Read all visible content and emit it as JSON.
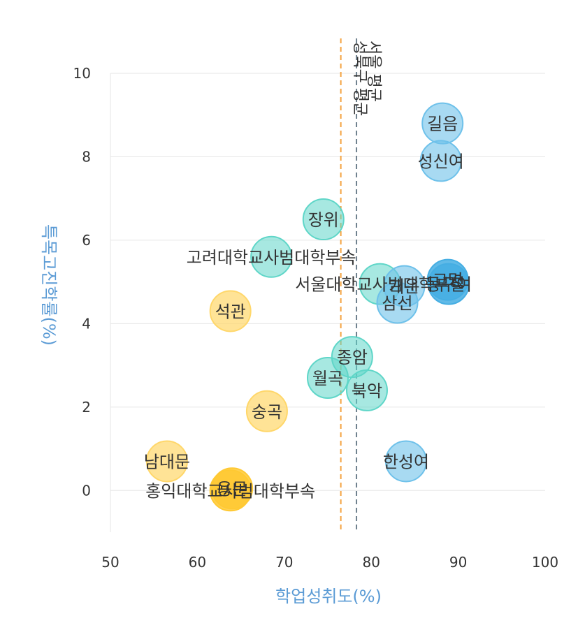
{
  "chart_data": {
    "type": "scatter",
    "xlabel": "학업성취도(%)",
    "ylabel": "특목고진학률(%)",
    "xlim": [
      50,
      100
    ],
    "ylim": [
      -1,
      10
    ],
    "xticks": [
      "50",
      "60",
      "70",
      "80",
      "90",
      "100"
    ],
    "yticks": [
      "0",
      "2",
      "4",
      "6",
      "8",
      "10"
    ],
    "grid": "horizontal",
    "colors": {
      "blue": "#6ec1ea",
      "teal": "#5fd6c8",
      "yellow": "#ffd76a",
      "yellow_dark": "#ffc933",
      "blue_dark": "#45aee3",
      "axis_title": "#5b9bd5",
      "ref_orange": "#f4a340",
      "ref_gray": "#6d7f8d"
    },
    "reference_lines": [
      {
        "x": 76.5,
        "color": "orange",
        "label": ""
      },
      {
        "x": 78.3,
        "color": "gray",
        "label": "서울 평균"
      },
      {
        "x": 78.3,
        "color": "gray",
        "label": "성북구 평균"
      }
    ],
    "points": [
      {
        "label": "길음",
        "x": 88.2,
        "y": 8.8,
        "color": "blue"
      },
      {
        "label": "성신여",
        "x": 88.0,
        "y": 7.9,
        "color": "blue"
      },
      {
        "label": "장위",
        "x": 74.5,
        "y": 6.5,
        "color": "teal"
      },
      {
        "label": "고려대학교사범대학부속",
        "x": 68.5,
        "y": 5.6,
        "color": "teal"
      },
      {
        "label": "서울대학교사범대학부설",
        "x": 81.0,
        "y": 4.95,
        "color": "teal"
      },
      {
        "label": "개운",
        "x": 83.8,
        "y": 4.9,
        "color": "blue"
      },
      {
        "label": "고명",
        "x": 88.8,
        "y": 5.05,
        "color": "blue_dark"
      },
      {
        "label": "동구여",
        "x": 88.9,
        "y": 4.95,
        "color": "blue_dark"
      },
      {
        "label": "삼선",
        "x": 83.0,
        "y": 4.5,
        "color": "blue"
      },
      {
        "label": "석관",
        "x": 63.8,
        "y": 4.3,
        "color": "yellow"
      },
      {
        "label": "종암",
        "x": 77.8,
        "y": 3.2,
        "color": "teal"
      },
      {
        "label": "월곡",
        "x": 75.0,
        "y": 2.7,
        "color": "teal"
      },
      {
        "label": "북악",
        "x": 79.5,
        "y": 2.4,
        "color": "teal"
      },
      {
        "label": "숭곡",
        "x": 68.0,
        "y": 1.9,
        "color": "yellow"
      },
      {
        "label": "한성여",
        "x": 84.0,
        "y": 0.7,
        "color": "blue"
      },
      {
        "label": "남대문",
        "x": 56.5,
        "y": 0.7,
        "color": "yellow"
      },
      {
        "label": "홍익대학교사범대학부속",
        "x": 63.8,
        "y": 0.0,
        "color": "yellow_dark"
      },
      {
        "label": "용문",
        "x": 64.0,
        "y": 0.05,
        "color": "yellow_dark"
      }
    ]
  }
}
